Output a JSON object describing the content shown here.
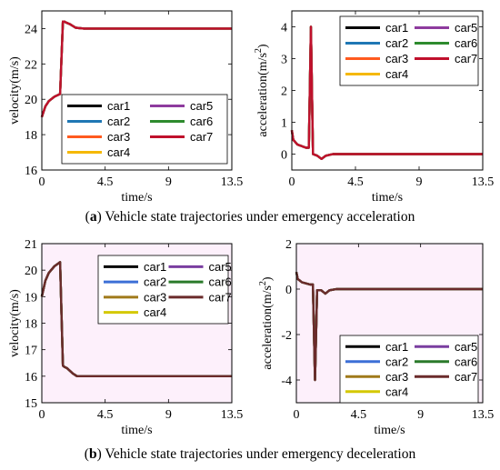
{
  "captions": [
    {
      "letter": "a",
      "open": "(",
      "close": ")",
      "text": " Vehicle state trajectories under emergency acceleration"
    },
    {
      "letter": "b",
      "open": "(",
      "close": ")",
      "text": " Vehicle state trajectories under emergency deceleration"
    }
  ],
  "legend_entries": [
    "car1",
    "car2",
    "car3",
    "car4",
    "car5",
    "car6",
    "car7"
  ],
  "colors": {
    "car1": "#000000",
    "car2": "#1f77b4",
    "car3": "#ff5a1f",
    "car4": "#f5b800",
    "car5": "#8e3b9e",
    "car6": "#2e8b2e",
    "car7": "#c0102c",
    "b_car2": "#3c6fd6",
    "b_car3": "#a07a1a",
    "b_car4": "#d4c800",
    "b_car5": "#7a3ea0",
    "b_car6": "#2a7a2a",
    "b_car7": "#6b2b2b"
  },
  "chart_data": [
    {
      "panel": "a-velocity",
      "type": "line",
      "xlabel": "time/s",
      "ylabel": "velocity(m/s)",
      "xlim": [
        0,
        13.5
      ],
      "ylim": [
        16,
        25
      ],
      "xticks": [
        "0",
        "4.5",
        "9",
        "13.5"
      ],
      "yticks": [
        "16",
        "18",
        "20",
        "22",
        "24"
      ],
      "legend": "bottom-left",
      "series": [
        {
          "name": "car1",
          "x": [
            0,
            0.25,
            0.5,
            0.9,
            1.3,
            1.5,
            1.6,
            1.7,
            2.0,
            2.4,
            3.0,
            13.5
          ],
          "y": [
            19,
            19.6,
            19.9,
            20.15,
            20.3,
            24.4,
            24.4,
            24.35,
            24.25,
            24.05,
            24,
            24
          ]
        }
      ]
    },
    {
      "panel": "a-acceleration",
      "type": "line",
      "xlabel": "time/s",
      "ylabel": "acceleration(m/s^2)",
      "xlim": [
        0,
        13.5
      ],
      "ylim": [
        -0.5,
        4.5
      ],
      "xticks": [
        "0",
        "4.5",
        "9",
        "13.5"
      ],
      "yticks": [
        "0",
        "1",
        "2",
        "3",
        "4"
      ],
      "legend": "top",
      "series": [
        {
          "name": "car1",
          "x": [
            0,
            0.1,
            0.4,
            1.0,
            1.2,
            1.35,
            1.5,
            1.8,
            2.1,
            2.4,
            2.9,
            13.5
          ],
          "y": [
            0.75,
            0.45,
            0.3,
            0.2,
            0.2,
            4.0,
            0.0,
            -0.05,
            -0.15,
            -0.05,
            0.0,
            0.0
          ]
        }
      ]
    },
    {
      "panel": "b-velocity",
      "type": "line",
      "xlabel": "time/s",
      "ylabel": "velocity(m/s)",
      "xlim": [
        0,
        13.5
      ],
      "ylim": [
        15,
        21
      ],
      "xticks": [
        "0",
        "4.5",
        "9",
        "13.5"
      ],
      "yticks": [
        "15",
        "16",
        "17",
        "18",
        "19",
        "20",
        "21"
      ],
      "legend": "top",
      "series": [
        {
          "name": "car1",
          "x": [
            0,
            0.25,
            0.5,
            0.9,
            1.3,
            1.5,
            1.6,
            1.8,
            2.2,
            2.5,
            3.0,
            13.5
          ],
          "y": [
            19,
            19.6,
            19.9,
            20.15,
            20.3,
            16.4,
            16.35,
            16.3,
            16.1,
            16.0,
            16.0,
            16.0
          ]
        }
      ]
    },
    {
      "panel": "b-acceleration",
      "type": "line",
      "xlabel": "time/s",
      "ylabel": "acceleration(m/s^2)",
      "xlim": [
        0,
        13.5
      ],
      "ylim": [
        -5,
        2
      ],
      "xticks": [
        "0",
        "4.5",
        "9",
        "13.5"
      ],
      "yticks": [
        "-4",
        "-2",
        "0",
        "2"
      ],
      "legend": "bottom",
      "series": [
        {
          "name": "car1",
          "x": [
            0,
            0.1,
            0.4,
            1.0,
            1.2,
            1.35,
            1.5,
            1.8,
            2.1,
            2.4,
            2.9,
            13.5
          ],
          "y": [
            0.75,
            0.45,
            0.3,
            0.2,
            0.2,
            -4.0,
            -0.05,
            -0.05,
            -0.2,
            -0.05,
            0.0,
            0.0
          ]
        }
      ]
    }
  ]
}
